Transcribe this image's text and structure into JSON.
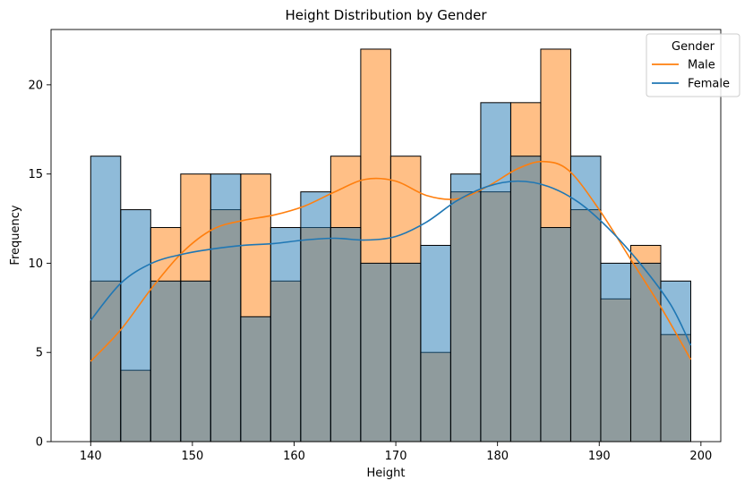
{
  "chart_data": {
    "type": "histogram",
    "title": "Height Distribution by Gender",
    "xlabel": "Height",
    "ylabel": "Frequency",
    "xlim": [
      136.1,
      201.95
    ],
    "ylim": [
      0,
      23.1
    ],
    "x_ticks": [
      140,
      150,
      160,
      170,
      180,
      190,
      200
    ],
    "y_ticks": [
      0,
      5,
      10,
      15,
      20
    ],
    "bin_edges": [
      140,
      142.95,
      145.9,
      148.85,
      151.8,
      154.75,
      157.7,
      160.65,
      163.6,
      166.55,
      169.5,
      172.45,
      175.4,
      178.35,
      181.3,
      184.25,
      187.2,
      190.15,
      193.1,
      196.05,
      199
    ],
    "legend": {
      "title": "Gender",
      "placement": "top-right",
      "entries": [
        "Male",
        "Female"
      ]
    },
    "series": [
      {
        "name": "Male",
        "color": "#ff7f0e",
        "counts": [
          9,
          4,
          12,
          15,
          13,
          15,
          9,
          12,
          16,
          22,
          16,
          5,
          14,
          14,
          19,
          22,
          13,
          8,
          11,
          6
        ],
        "kde": [
          [
            140,
            4.5
          ],
          [
            143,
            6.3
          ],
          [
            146,
            8.6
          ],
          [
            149,
            10.6
          ],
          [
            152,
            11.9
          ],
          [
            155,
            12.4
          ],
          [
            158,
            12.7
          ],
          [
            161,
            13.2
          ],
          [
            164,
            14.0
          ],
          [
            167,
            14.7
          ],
          [
            170,
            14.6
          ],
          [
            173,
            13.8
          ],
          [
            176,
            13.6
          ],
          [
            179,
            14.3
          ],
          [
            182,
            15.3
          ],
          [
            184.5,
            15.7
          ],
          [
            187,
            15.2
          ],
          [
            190,
            13.0
          ],
          [
            193,
            10.3
          ],
          [
            196,
            7.6
          ],
          [
            199,
            4.6
          ]
        ]
      },
      {
        "name": "Female",
        "color": "#1f77b4",
        "counts": [
          16,
          13,
          9,
          9,
          15,
          7,
          12,
          14,
          12,
          10,
          10,
          11,
          15,
          19,
          16,
          12,
          16,
          10,
          10,
          9
        ],
        "kde": [
          [
            140,
            6.8
          ],
          [
            143,
            8.9
          ],
          [
            146,
            10.0
          ],
          [
            149,
            10.5
          ],
          [
            152,
            10.8
          ],
          [
            155,
            11.0
          ],
          [
            158,
            11.1
          ],
          [
            161,
            11.3
          ],
          [
            164,
            11.4
          ],
          [
            167,
            11.3
          ],
          [
            170,
            11.5
          ],
          [
            173,
            12.3
          ],
          [
            176,
            13.5
          ],
          [
            179,
            14.3
          ],
          [
            182,
            14.6
          ],
          [
            185,
            14.3
          ],
          [
            188,
            13.4
          ],
          [
            191,
            11.9
          ],
          [
            194,
            10.0
          ],
          [
            197,
            7.7
          ],
          [
            199,
            5.4
          ]
        ]
      }
    ]
  }
}
